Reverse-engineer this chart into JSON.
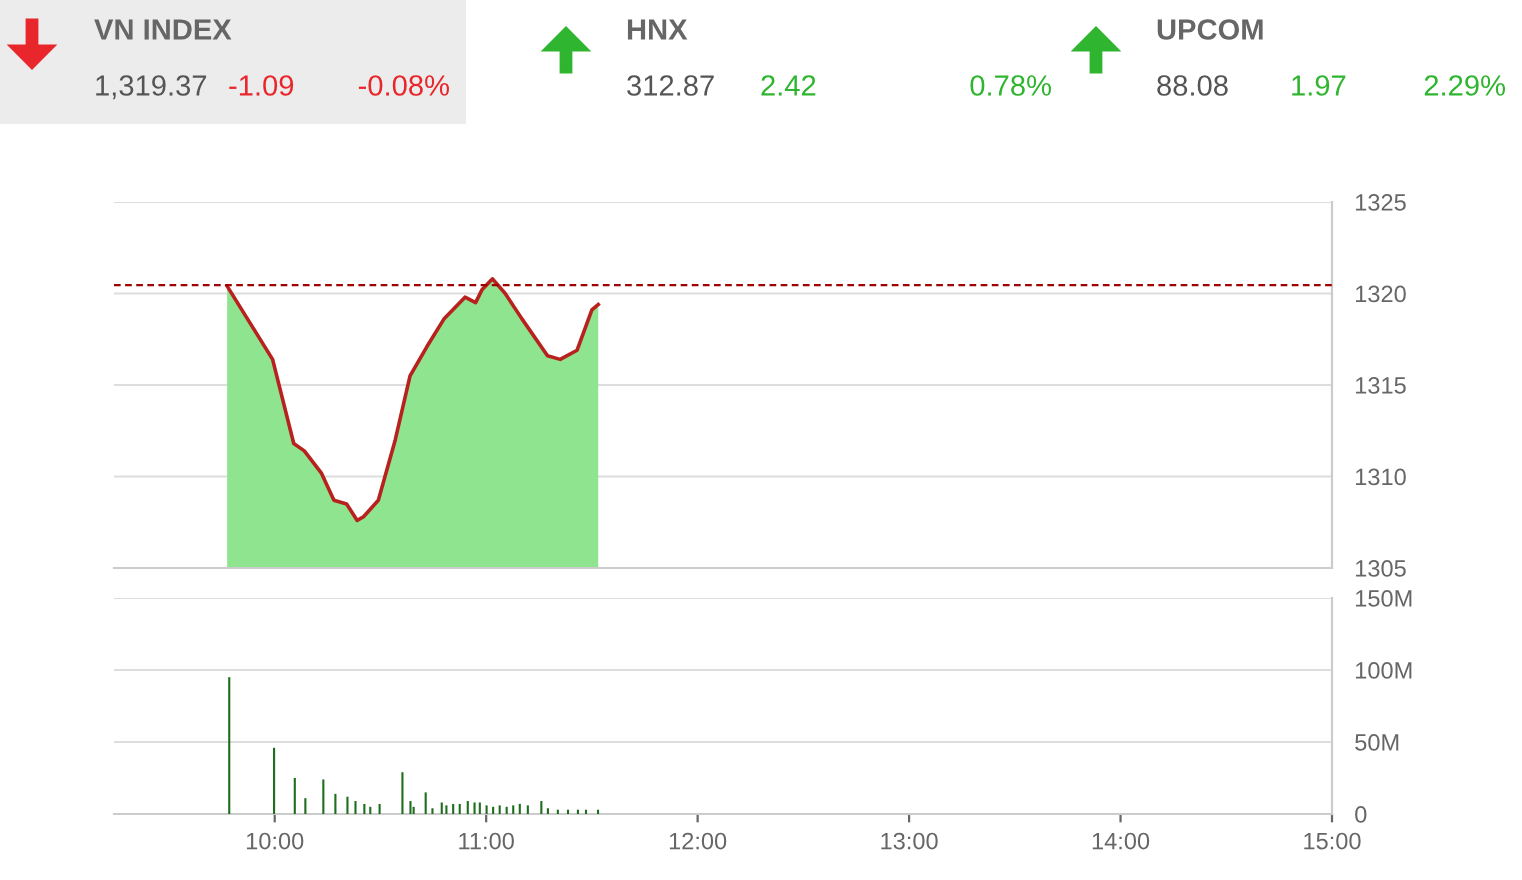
{
  "chart_data": [
    {
      "type": "other",
      "title": "VN INDEX",
      "value_labels": [
        "1,319.37",
        "-1.09",
        "-0.08%"
      ],
      "colors": [
        "#555555",
        "#e8262b",
        "#e8262b"
      ]
    },
    {
      "type": "other",
      "title": "HNX",
      "value_labels": [
        "312.87",
        "2.42",
        "0.78%"
      ],
      "colors": [
        "#555555",
        "#2fb52f",
        "#2fb52f"
      ]
    },
    {
      "type": "other",
      "title": "UPCOM",
      "value_labels": [
        "88.08",
        "1.97",
        "2.29%"
      ],
      "colors": [
        "#555555",
        "#2fb52f",
        "#2fb52f"
      ]
    },
    {
      "type": "area",
      "series": [
        {
          "color": "#8fe58f",
          "x": [
            9.775,
            9.99,
            10.09,
            10.14,
            10.22,
            10.28,
            10.34,
            10.39,
            10.42,
            10.49,
            10.57,
            10.64,
            10.72,
            10.8,
            10.9,
            10.95,
            10.98,
            11.03,
            11.09,
            11.17,
            11.29,
            11.35,
            11.43,
            11.5,
            11.53
          ],
          "values": [
            1320.4,
            1316.4,
            1311.8,
            1311.4,
            1310.2,
            1308.7,
            1308.5,
            1307.6,
            1307.8,
            1308.7,
            1312.0,
            1315.5,
            1317.1,
            1318.6,
            1319.8,
            1319.5,
            1320.2,
            1320.8,
            1320.0,
            1318.6,
            1316.6,
            1316.4,
            1316.9,
            1319.1,
            1319.4
          ]
        },
        {
          "type": "line",
          "color": "#b8221e",
          "x": [
            9.775,
            9.99,
            10.09,
            10.14,
            10.22,
            10.28,
            10.34,
            10.39,
            10.42,
            10.49,
            10.57,
            10.64,
            10.72,
            10.8,
            10.9,
            10.95,
            10.98,
            11.03,
            11.09,
            11.17,
            11.29,
            11.35,
            11.43,
            11.5,
            11.53
          ],
          "values": [
            1320.4,
            1316.4,
            1311.8,
            1311.4,
            1310.2,
            1308.7,
            1308.5,
            1307.6,
            1307.8,
            1308.7,
            1312.0,
            1315.5,
            1317.1,
            1318.6,
            1319.8,
            1319.5,
            1320.2,
            1320.8,
            1320.0,
            1318.6,
            1316.6,
            1316.4,
            1316.9,
            1319.1,
            1319.4
          ]
        }
      ],
      "xlim": [
        9.24,
        15
      ],
      "ylim": [
        1305,
        1325
      ],
      "yticks": [
        1305,
        1310,
        1315,
        1320,
        1325
      ],
      "grid": "y",
      "tick_labels": "y",
      "ref_lines": [
        {
          "axis": "y",
          "value": 1320.46,
          "color": "#a00000",
          "line_style": "dashed"
        }
      ]
    },
    {
      "type": "bar",
      "series": [
        {
          "color": "#1e6e1e",
          "x": [
            9.785,
            9.997,
            10.095,
            10.145,
            10.23,
            10.287,
            10.344,
            10.382,
            10.424,
            10.452,
            10.496,
            10.604,
            10.642,
            10.657,
            10.714,
            10.746,
            10.79,
            10.812,
            10.844,
            10.875,
            10.913,
            10.945,
            10.97,
            11.002,
            11.033,
            11.064,
            11.097,
            11.128,
            11.159,
            11.197,
            11.261,
            11.292,
            11.339,
            11.387,
            11.434,
            11.472,
            11.529
          ],
          "values": [
            95000000,
            46000000,
            25000000,
            11000000,
            24000000,
            14000000,
            12000000,
            9000000,
            7000000,
            5000000,
            7000000,
            29000000,
            9000000,
            5000000,
            15000000,
            4000000,
            8000000,
            6000000,
            7000000,
            7000000,
            9000000,
            8000000,
            8000000,
            6000000,
            5000000,
            6000000,
            5000000,
            6000000,
            7000000,
            6000000,
            9000000,
            4000000,
            3000000,
            3000000,
            3000000,
            3000000,
            3000000
          ]
        }
      ],
      "xlim": [
        9.24,
        15
      ],
      "xticks": [
        {
          "value": 10,
          "label": "10:00"
        },
        {
          "value": 11,
          "label": "11:00"
        },
        {
          "value": 12,
          "label": "12:00"
        },
        {
          "value": 13,
          "label": "13:00"
        },
        {
          "value": 14,
          "label": "14:00"
        },
        {
          "value": 15,
          "label": "15:00"
        }
      ],
      "ylim": [
        0,
        150000000
      ],
      "yticks": [
        {
          "value": 0,
          "label": "0"
        },
        {
          "value": 50000000,
          "label": "50M"
        },
        {
          "value": 100000000,
          "label": "100M"
        },
        {
          "value": 150000000,
          "label": "150M"
        }
      ],
      "grid": "y"
    }
  ]
}
